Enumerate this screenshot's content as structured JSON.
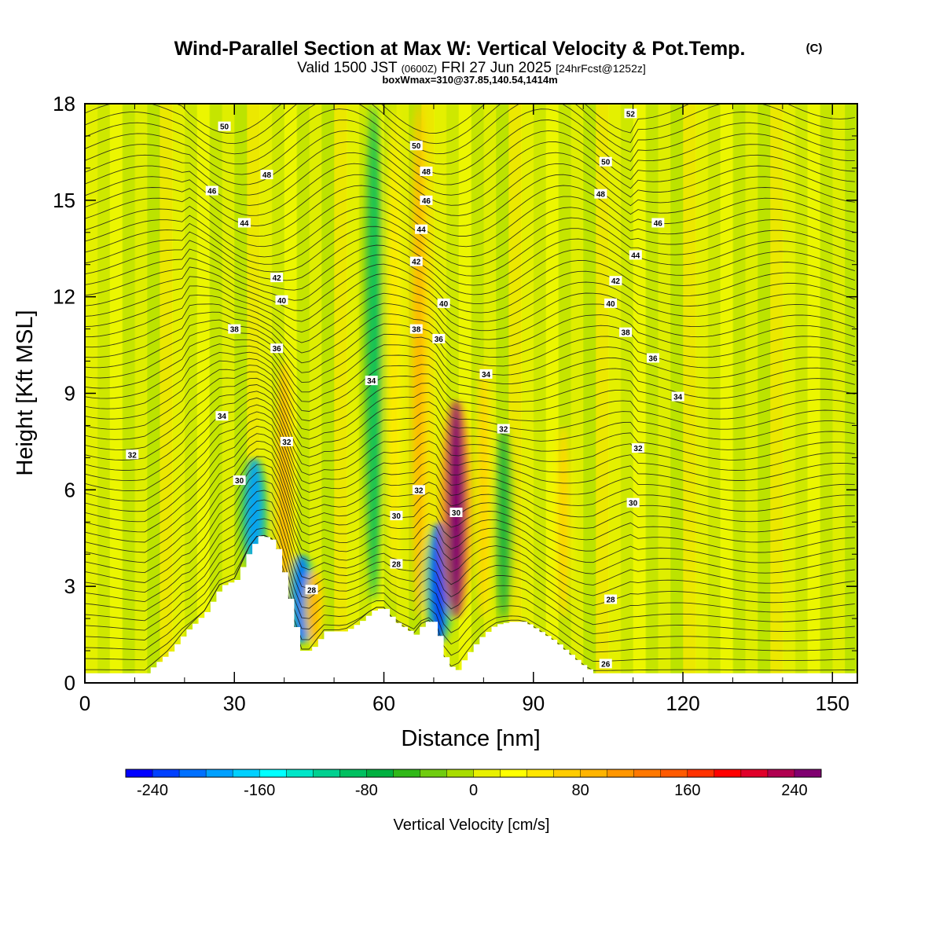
{
  "header": {
    "title": "Wind-Parallel Section at Max W: Vertical Velocity & Pot.Temp.",
    "copyright": "(C)",
    "valid_main": "Valid 1500 JST ",
    "valid_zulu": "(0600Z)",
    "valid_date": " FRI 27 Jun 2025 ",
    "forecast": "[24hrFcst@1252z]",
    "box_info": "boxWmax=310@37.85,140.54,1414m"
  },
  "chart_data": {
    "type": "heatmap",
    "xlabel": "Distance [nm]",
    "ylabel": "Height [Kft MSL]",
    "xlim": [
      0,
      155
    ],
    "ylim": [
      0,
      18
    ],
    "x_ticks": [
      0,
      30,
      60,
      90,
      120,
      150
    ],
    "y_ticks": [
      0,
      3,
      6,
      9,
      12,
      15,
      18
    ],
    "grid": false,
    "colorbar": {
      "label": "Vertical Velocity [cm/s]",
      "range": [
        -260,
        260
      ],
      "step": 20,
      "tick_values": [
        -240,
        -160,
        -80,
        0,
        80,
        160,
        240
      ],
      "colors": [
        "#0000ff",
        "#0040ff",
        "#0070ff",
        "#00a0ff",
        "#00d0ff",
        "#00ffff",
        "#00e6c8",
        "#00d090",
        "#00c060",
        "#00b040",
        "#30b818",
        "#70cc10",
        "#a8dc00",
        "#e8f000",
        "#ffff00",
        "#ffe600",
        "#ffcc00",
        "#ffb400",
        "#ff9600",
        "#ff7800",
        "#ff5a00",
        "#ff3200",
        "#ff0000",
        "#e0002a",
        "#b00050",
        "#800070"
      ]
    },
    "vertical_velocity_features": [
      {
        "x": 34,
        "y_bottom": 3.5,
        "y_top": 7,
        "w": -200
      },
      {
        "x": 40,
        "y_bottom": 2,
        "y_top": 10,
        "w": 80
      },
      {
        "x": 43.5,
        "y_bottom": 1.2,
        "y_top": 4,
        "w": -220
      },
      {
        "x": 46,
        "y_bottom": 1.2,
        "y_top": 3.5,
        "w": 90
      },
      {
        "x": 58,
        "y_bottom": 2.5,
        "y_top": 18,
        "w": -90
      },
      {
        "x": 62,
        "y_bottom": 2.5,
        "y_top": 18,
        "w": 50
      },
      {
        "x": 67,
        "y_bottom": 2,
        "y_top": 18,
        "w": 90
      },
      {
        "x": 71,
        "y_bottom": 1.2,
        "y_top": 5,
        "w": -240
      },
      {
        "x": 74.5,
        "y_bottom": 2,
        "y_top": 8.8,
        "w": 250
      },
      {
        "x": 80,
        "y_bottom": 2,
        "y_top": 10,
        "w": 60
      },
      {
        "x": 84,
        "y_bottom": 2,
        "y_top": 8,
        "w": -80
      },
      {
        "x": 96,
        "y_bottom": 2,
        "y_top": 8,
        "w": 60
      }
    ],
    "terrain_height_kft": [
      {
        "x": 0,
        "h": 0.3
      },
      {
        "x": 12,
        "h": 0.3
      },
      {
        "x": 14,
        "h": 0.6
      },
      {
        "x": 17,
        "h": 1.0
      },
      {
        "x": 20,
        "h": 1.6
      },
      {
        "x": 24,
        "h": 2.2
      },
      {
        "x": 27,
        "h": 3.0
      },
      {
        "x": 30,
        "h": 3.2
      },
      {
        "x": 33,
        "h": 4.2
      },
      {
        "x": 35,
        "h": 4.6
      },
      {
        "x": 38,
        "h": 4.4
      },
      {
        "x": 40,
        "h": 3.2
      },
      {
        "x": 43,
        "h": 1.0
      },
      {
        "x": 45,
        "h": 1.0
      },
      {
        "x": 48,
        "h": 1.6
      },
      {
        "x": 52,
        "h": 1.6
      },
      {
        "x": 55,
        "h": 1.9
      },
      {
        "x": 58,
        "h": 2.3
      },
      {
        "x": 60,
        "h": 2.3
      },
      {
        "x": 62,
        "h": 1.9
      },
      {
        "x": 66,
        "h": 1.5
      },
      {
        "x": 68,
        "h": 1.9
      },
      {
        "x": 70,
        "h": 1.9
      },
      {
        "x": 72,
        "h": 0.8
      },
      {
        "x": 74,
        "h": 0.3
      },
      {
        "x": 76,
        "h": 0.8
      },
      {
        "x": 79,
        "h": 1.4
      },
      {
        "x": 82,
        "h": 1.8
      },
      {
        "x": 85,
        "h": 1.9
      },
      {
        "x": 88,
        "h": 1.9
      },
      {
        "x": 91,
        "h": 1.6
      },
      {
        "x": 94,
        "h": 1.3
      },
      {
        "x": 97,
        "h": 0.9
      },
      {
        "x": 100,
        "h": 0.5
      },
      {
        "x": 102,
        "h": 0.3
      },
      {
        "x": 155,
        "h": 0.3
      }
    ],
    "theta_contour_labels": [
      {
        "x": 9.5,
        "y": 7.1,
        "text": "32"
      },
      {
        "x": 27.5,
        "y": 8.3,
        "text": "34"
      },
      {
        "x": 31,
        "y": 6.3,
        "text": "30"
      },
      {
        "x": 30,
        "y": 11.0,
        "text": "38"
      },
      {
        "x": 38.5,
        "y": 10.4,
        "text": "36"
      },
      {
        "x": 39.5,
        "y": 11.9,
        "text": "40"
      },
      {
        "x": 38.5,
        "y": 12.6,
        "text": "42"
      },
      {
        "x": 32,
        "y": 14.3,
        "text": "44"
      },
      {
        "x": 25.5,
        "y": 15.3,
        "text": "46"
      },
      {
        "x": 36.5,
        "y": 15.8,
        "text": "48"
      },
      {
        "x": 28,
        "y": 17.3,
        "text": "50"
      },
      {
        "x": 40.5,
        "y": 7.5,
        "text": "32"
      },
      {
        "x": 45.5,
        "y": 2.9,
        "text": "28"
      },
      {
        "x": 57.5,
        "y": 9.4,
        "text": "34"
      },
      {
        "x": 62.5,
        "y": 5.2,
        "text": "30"
      },
      {
        "x": 62.5,
        "y": 3.7,
        "text": "28"
      },
      {
        "x": 67,
        "y": 6.0,
        "text": "32"
      },
      {
        "x": 66.5,
        "y": 11.0,
        "text": "38"
      },
      {
        "x": 71,
        "y": 10.7,
        "text": "36"
      },
      {
        "x": 72,
        "y": 11.8,
        "text": "40"
      },
      {
        "x": 66.5,
        "y": 13.1,
        "text": "42"
      },
      {
        "x": 67.5,
        "y": 14.1,
        "text": "44"
      },
      {
        "x": 68.5,
        "y": 15.0,
        "text": "46"
      },
      {
        "x": 68.5,
        "y": 15.9,
        "text": "48"
      },
      {
        "x": 66.5,
        "y": 16.7,
        "text": "50"
      },
      {
        "x": 74.5,
        "y": 5.3,
        "text": "30"
      },
      {
        "x": 80.5,
        "y": 9.6,
        "text": "34"
      },
      {
        "x": 84,
        "y": 7.9,
        "text": "32"
      },
      {
        "x": 103.5,
        "y": 15.2,
        "text": "48"
      },
      {
        "x": 104.5,
        "y": 16.2,
        "text": "50"
      },
      {
        "x": 109.5,
        "y": 17.7,
        "text": "52"
      },
      {
        "x": 115,
        "y": 14.3,
        "text": "46"
      },
      {
        "x": 110.5,
        "y": 13.3,
        "text": "44"
      },
      {
        "x": 106.5,
        "y": 12.5,
        "text": "42"
      },
      {
        "x": 105.5,
        "y": 11.8,
        "text": "40"
      },
      {
        "x": 108.5,
        "y": 10.9,
        "text": "38"
      },
      {
        "x": 114,
        "y": 10.1,
        "text": "36"
      },
      {
        "x": 119,
        "y": 8.9,
        "text": "34"
      },
      {
        "x": 111,
        "y": 7.3,
        "text": "32"
      },
      {
        "x": 110,
        "y": 5.6,
        "text": "30"
      },
      {
        "x": 105.5,
        "y": 2.6,
        "text": "28"
      },
      {
        "x": 104.5,
        "y": 0.6,
        "text": "26"
      }
    ]
  }
}
